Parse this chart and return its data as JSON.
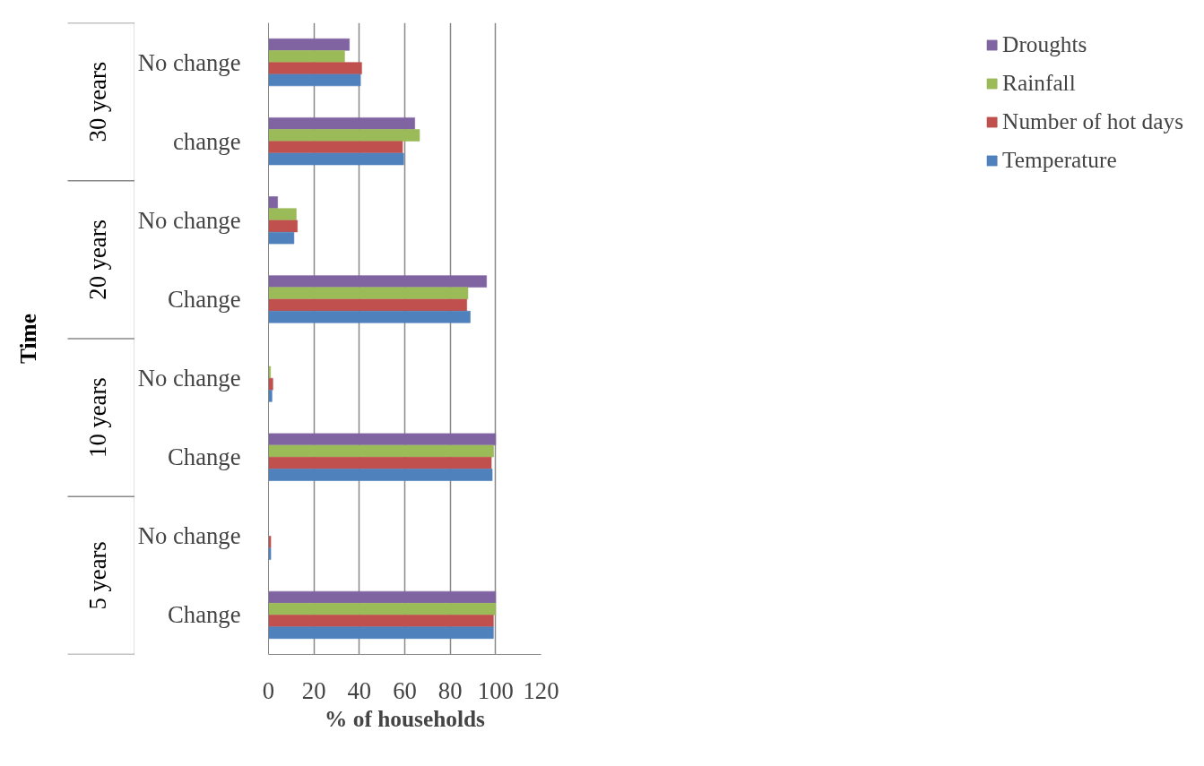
{
  "chart_data": {
    "type": "bar",
    "orientation": "horizontal",
    "xlabel": "% of households",
    "ylabel": "Time",
    "categories": [
      "No change",
      "change",
      "No change",
      "Change",
      "No change",
      "Change",
      "No change",
      "Change"
    ],
    "annotations": [
      "30 years",
      "20 years",
      "10 years",
      "5 years"
    ],
    "series": [
      {
        "name": "Droughts",
        "color": "#8064a2",
        "values": [
          35.6,
          64.4,
          4,
          96,
          0,
          100,
          0,
          100
        ]
      },
      {
        "name": "Rainfall",
        "color": "#9bbb59",
        "values": [
          33.5,
          66.5,
          12.2,
          87.8,
          0.9,
          99.1,
          0,
          100
        ]
      },
      {
        "name": "Number of hot days",
        "color": "#c0504d",
        "values": [
          41,
          59,
          12.7,
          87.3,
          1.9,
          98.1,
          1,
          99
        ]
      },
      {
        "name": "Temperature",
        "color": "#4f81bd",
        "values": [
          40.5,
          59.5,
          11.2,
          88.8,
          1.5,
          98.5,
          1,
          99
        ]
      }
    ],
    "xlim": [
      0,
      120
    ],
    "xticks": [
      0,
      20,
      40,
      60,
      80,
      100,
      120
    ],
    "grid": "x",
    "legend": "right"
  }
}
